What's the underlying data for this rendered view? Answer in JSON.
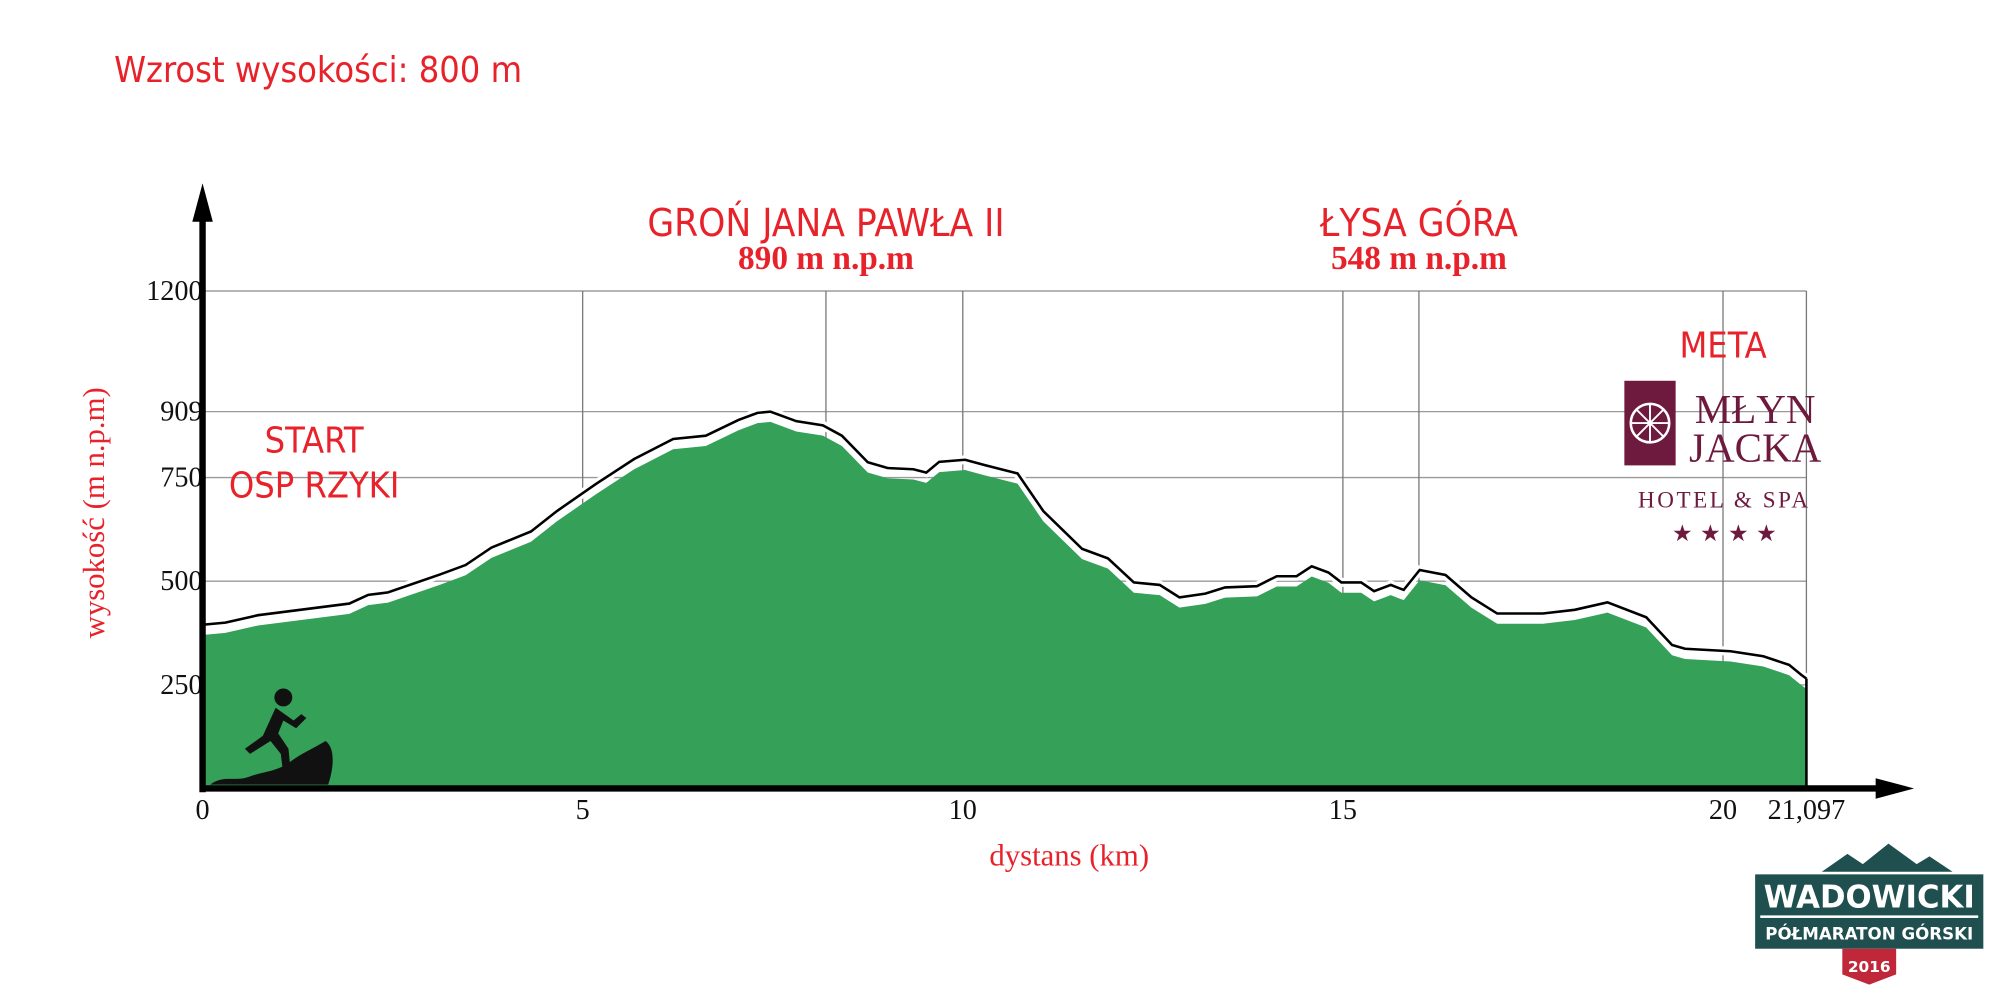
{
  "chart_data": {
    "type": "area",
    "title": "Wzrost wysokości: 800 m",
    "x_label": "dystans (km)",
    "y_label": "wysokość (m n.p.m)",
    "x": [
      0,
      0.3,
      0.73,
      1.93,
      2.18,
      2.44,
      3.12,
      3.46,
      3.8,
      4.32,
      4.66,
      5.17,
      5.68,
      6.19,
      6.62,
      7.05,
      7.3,
      7.47,
      7.81,
      8.16,
      8.41,
      8.75,
      9.01,
      9.35,
      9.52,
      9.69,
      10.03,
      10.29,
      10.72,
      11.06,
      11.57,
      11.91,
      12.25,
      12.59,
      12.85,
      13.19,
      13.45,
      13.87,
      14.13,
      14.39,
      14.59,
      14.81,
      14.98,
      15.24,
      15.41,
      15.63,
      15.8,
      16.01,
      16.35,
      16.69,
      17.03,
      17.63,
      18.05,
      18.48,
      18.99,
      19.33,
      19.5,
      20.1,
      20.53,
      20.87,
      21.03,
      21.097
    ],
    "values": [
      395,
      400,
      418,
      446,
      467,
      473,
      516,
      539,
      581,
      620,
      669,
      734,
      795,
      843,
      851,
      889,
      906,
      909,
      886,
      876,
      851,
      787,
      773,
      770,
      762,
      788,
      793,
      780,
      760,
      669,
      578,
      555,
      497,
      491,
      461,
      470,
      485,
      488,
      512,
      512,
      536,
      521,
      497,
      497,
      476,
      491,
      479,
      527,
      515,
      461,
      422,
      422,
      431,
      449,
      413,
      346,
      337,
      331,
      319,
      298,
      274,
      265
    ],
    "color": "#34a058",
    "line_color": "#000000",
    "xlim": [
      0,
      21.097
    ],
    "ylim": [
      0,
      1200
    ],
    "xticks": [
      0,
      5,
      10,
      15,
      20,
      {
        "value": 21.097,
        "label": "21,097"
      }
    ],
    "yticks": [
      250,
      500,
      750,
      909,
      1200
    ],
    "grid": true,
    "peaks": [
      {
        "x": 8.2,
        "name": "GROŃ JANA PAWŁA II",
        "label": "890 m n.p.m"
      },
      {
        "x": 16.0,
        "name": "ŁYSA GÓRA",
        "label": "548 m n.p.m"
      }
    ],
    "start": [
      "START",
      "OSP RZYKI"
    ],
    "finish": "META",
    "sponsor": {
      "name1": "MŁYN",
      "name2": "JACKA",
      "sub": "HOTEL & SPA",
      "stars": "★ ★ ★ ★"
    },
    "event": {
      "name": "WADOWICKI",
      "sub": "PÓŁMARATON GÓRSKI",
      "year": "2016"
    }
  }
}
